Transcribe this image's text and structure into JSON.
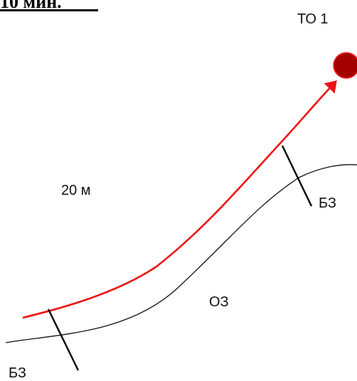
{
  "header": {
    "text": "10 мин."
  },
  "labels": {
    "target": "ТО 1",
    "distance": "20 м",
    "zone_top": "БЗ",
    "zone_middle": "ОЗ",
    "zone_bottom": "БЗ"
  },
  "colors": {
    "path": "#ee1111",
    "target_fill": "#a40000",
    "target_stroke": "#ff2a2a",
    "line": "#000000",
    "border_curve": "#111111"
  }
}
